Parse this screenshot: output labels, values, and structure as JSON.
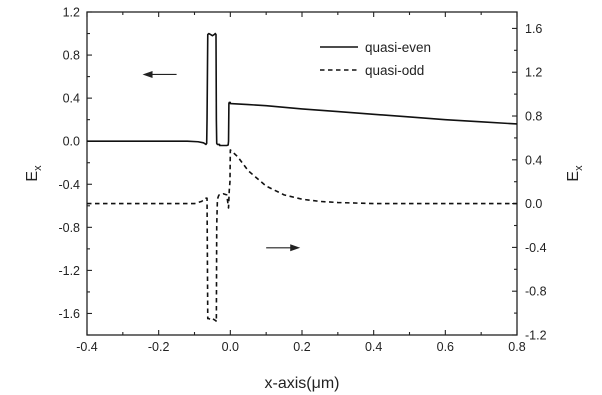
{
  "chart_data": {
    "type": "line",
    "title": "",
    "xlabel": "x-axis(μm)",
    "ylabel_left": "E",
    "ylabel_left_sub": "x",
    "ylabel_right": "E",
    "ylabel_right_sub": "x",
    "xlim": [
      -0.4,
      0.8
    ],
    "ylim_left": [
      -1.8,
      1.2
    ],
    "ylim_right": [
      -1.2,
      1.75
    ],
    "xticks": [
      -0.4,
      -0.2,
      0.0,
      0.2,
      0.4,
      0.6,
      0.8
    ],
    "xtick_labels": [
      "-0.4",
      "-0.2",
      "0.0",
      "0.2",
      "0.4",
      "0.6",
      "0.8"
    ],
    "yticks_left": [
      1.2,
      0.8,
      0.4,
      0.0,
      -0.4,
      -0.8,
      -1.2,
      -1.6
    ],
    "ytick_labels_left": [
      "1.2",
      "0.8",
      "0.4",
      "0.0",
      "-0.4",
      "-0.8",
      "-1.2",
      "-1.6"
    ],
    "yticks_right": [
      1.6,
      1.2,
      0.8,
      0.4,
      0.0,
      -0.4,
      -0.8,
      -1.2
    ],
    "ytick_labels_right": [
      "1.6",
      "1.2",
      "0.8",
      "0.4",
      "0.0",
      "-0.4",
      "-0.8",
      "-1.2"
    ],
    "legend_position": "top-right",
    "grid": false,
    "series": [
      {
        "name": "quasi-even",
        "axis": "left",
        "style": "solid",
        "x": [
          -0.4,
          -0.3,
          -0.2,
          -0.12,
          -0.09,
          -0.075,
          -0.07,
          -0.068,
          -0.066,
          -0.065,
          -0.063,
          -0.06,
          -0.055,
          -0.05,
          -0.045,
          -0.042,
          -0.04,
          -0.039,
          -0.038,
          -0.036,
          -0.032,
          -0.03,
          -0.03,
          -0.02,
          -0.01,
          -0.006,
          -0.005,
          -0.004,
          -0.003,
          -0.001,
          0.0,
          0.0,
          0.05,
          0.1,
          0.2,
          0.3,
          0.4,
          0.5,
          0.6,
          0.7,
          0.8
        ],
        "y": [
          0.0,
          0.0,
          0.0,
          0.0,
          -0.005,
          -0.015,
          -0.025,
          -0.03,
          -0.02,
          0.2,
          0.99,
          1.0,
          0.99,
          0.98,
          0.99,
          1.0,
          0.99,
          0.2,
          -0.02,
          -0.03,
          -0.03,
          -0.03,
          -0.04,
          -0.04,
          -0.04,
          -0.035,
          0.0,
          0.35,
          0.36,
          0.36,
          0.36,
          0.35,
          0.34,
          0.33,
          0.3,
          0.275,
          0.25,
          0.225,
          0.2,
          0.18,
          0.16
        ]
      },
      {
        "name": "quasi-odd",
        "axis": "right",
        "style": "dashed",
        "x": [
          -0.4,
          -0.3,
          -0.2,
          -0.1,
          -0.08,
          -0.07,
          -0.065,
          -0.063,
          -0.06,
          -0.055,
          -0.05,
          -0.045,
          -0.04,
          -0.039,
          -0.038,
          -0.036,
          -0.033,
          -0.031,
          -0.03,
          -0.02,
          -0.01,
          -0.005,
          -0.003,
          -0.001,
          0.0,
          0.02,
          0.05,
          0.1,
          0.15,
          0.2,
          0.25,
          0.3,
          0.4,
          0.5,
          0.6,
          0.7,
          0.8
        ],
        "y": [
          0.0,
          0.0,
          0.0,
          0.0,
          0.02,
          0.05,
          0.05,
          -1.05,
          -1.05,
          -1.06,
          -1.05,
          -1.06,
          -1.07,
          -1.08,
          -0.2,
          0.04,
          0.07,
          0.08,
          0.08,
          0.09,
          0.08,
          -0.04,
          0.12,
          0.2,
          0.49,
          0.43,
          0.3,
          0.16,
          0.08,
          0.04,
          0.02,
          0.01,
          0.0,
          0.0,
          0.0,
          0.0,
          0.0
        ]
      }
    ],
    "annotations": [
      {
        "type": "arrow",
        "direction": "left",
        "from": [
          -0.15,
          0.62
        ],
        "to": [
          -0.245,
          0.62
        ],
        "axis": "left"
      },
      {
        "type": "arrow",
        "direction": "right",
        "from": [
          0.1,
          -0.99
        ],
        "to": [
          0.195,
          -0.99
        ],
        "axis": "left"
      }
    ]
  }
}
